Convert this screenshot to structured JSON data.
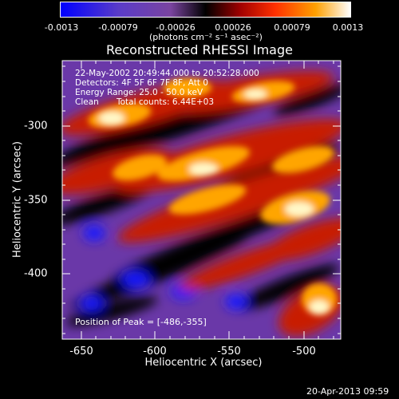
{
  "colorbar": {
    "tick_labels": [
      "-0.0013",
      "-0.00079",
      "-0.00026",
      "0.00026",
      "0.00079",
      "0.0013"
    ],
    "unit_label": "(photons cm⁻² s⁻¹ asec⁻²)"
  },
  "title": "Reconstructed RHESSI Image",
  "info": {
    "time_range": "22-May-2002 20:49:44.000 to 20:52:28.000",
    "detectors": "Detectors: 4F 5F 6F 7F 8F, Att 0",
    "energy": "Energy Range: 25.0 - 50.0 keV",
    "method": "Clean",
    "total_counts": "Total counts: 6.44E+03",
    "peak": "Position of Peak = [-486,-355]"
  },
  "axes": {
    "xlabel": "Heliocentric X (arcsec)",
    "ylabel": "Heliocentric Y (arcsec)",
    "x_ticks": [
      "-650",
      "-600",
      "-550",
      "-500"
    ],
    "y_ticks": [
      "-300",
      "-350",
      "-400"
    ],
    "xlim": [
      -665,
      -477
    ],
    "ylim": [
      -447,
      -260
    ]
  },
  "footer": {
    "date": "20-Apr-2013 09:59"
  },
  "colors": {
    "low": "#1a1aff",
    "mid_low": "#6a3aa8",
    "zero": "#000000",
    "mid_high": "#c81e00",
    "high": "#ffa500",
    "peak": "#fff8c8"
  }
}
